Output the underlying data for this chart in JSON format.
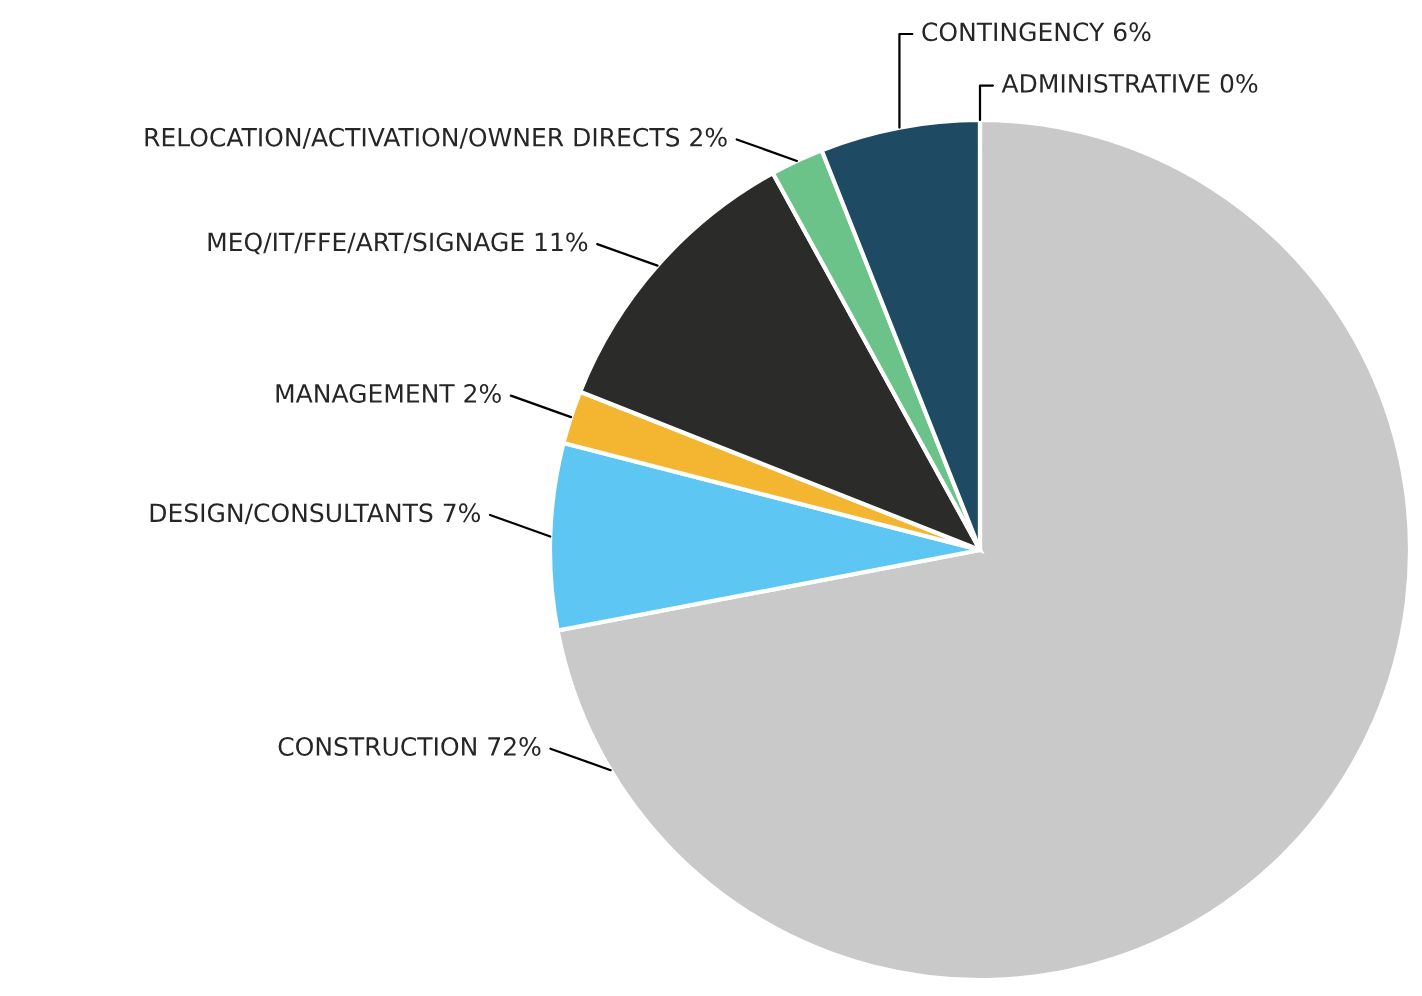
{
  "chart_data": {
    "type": "pie",
    "categories": [
      "CONSTRUCTION",
      "DESIGN/CONSULTANTS",
      "MANAGEMENT",
      "MEQ/IT/FFE/ART/SIGNAGE",
      "RELOCATION/ACTIVATION/OWNER DIRECTS",
      "CONTINGENCY",
      "ADMINISTRATIVE"
    ],
    "values": [
      72,
      7,
      2,
      11,
      2,
      6,
      0
    ],
    "value_labels": [
      "72%",
      "7%",
      "2%",
      "11%",
      "2%",
      "6%",
      "0%"
    ],
    "colors": [
      "#c9c9c9",
      "#5ec6f2",
      "#f4b630",
      "#2b2b29",
      "#6cc38a",
      "#1e4a64",
      "#ffffff"
    ]
  }
}
